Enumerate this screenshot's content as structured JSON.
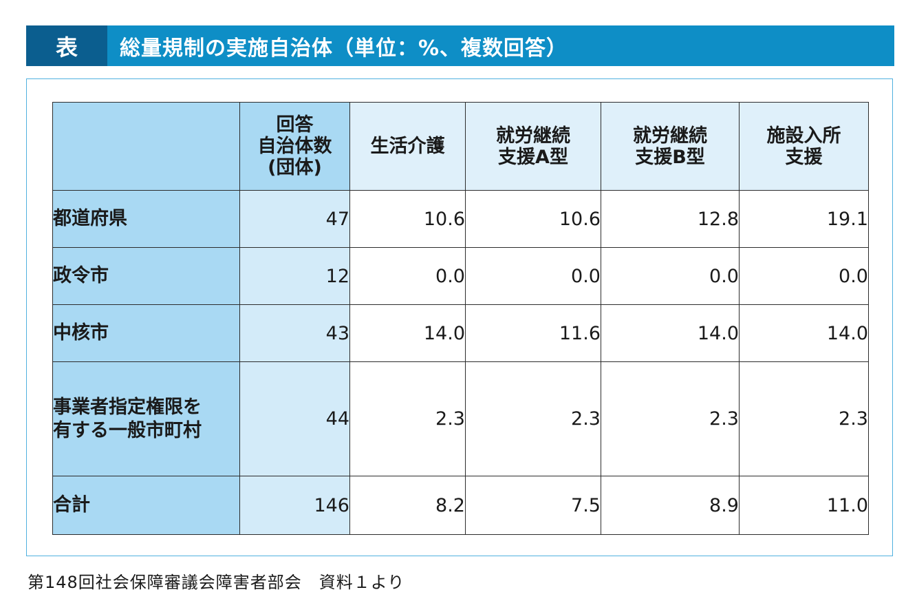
{
  "title": {
    "tag": "表",
    "text": "総量規制の実施自治体（単位：%、複数回答）"
  },
  "table": {
    "headers": {
      "count": [
        "回答",
        "自治体数",
        "(団体)"
      ],
      "c1": [
        "生活介護"
      ],
      "c2": [
        "就労継続",
        "支援A型"
      ],
      "c3": [
        "就労継続",
        "支援B型"
      ],
      "c4": [
        "施設入所",
        "支援"
      ]
    },
    "rows": [
      {
        "label": [
          "都道府県"
        ],
        "count": "47",
        "values": [
          "10.6",
          "10.6",
          "12.8",
          "19.1"
        ]
      },
      {
        "label": [
          "政令市"
        ],
        "count": "12",
        "values": [
          "0.0",
          "0.0",
          "0.0",
          "0.0"
        ]
      },
      {
        "label": [
          "中核市"
        ],
        "count": "43",
        "values": [
          "14.0",
          "11.6",
          "14.0",
          "14.0"
        ]
      },
      {
        "label": [
          "事業者指定権限を",
          "有する一般市町村"
        ],
        "count": "44",
        "values": [
          "2.3",
          "2.3",
          "2.3",
          "2.3"
        ]
      },
      {
        "label": [
          "合計"
        ],
        "count": "146",
        "values": [
          "8.2",
          "7.5",
          "8.9",
          "11.0"
        ]
      }
    ]
  },
  "source": "第148回社会保障審議会障害者部会　資料１より"
}
